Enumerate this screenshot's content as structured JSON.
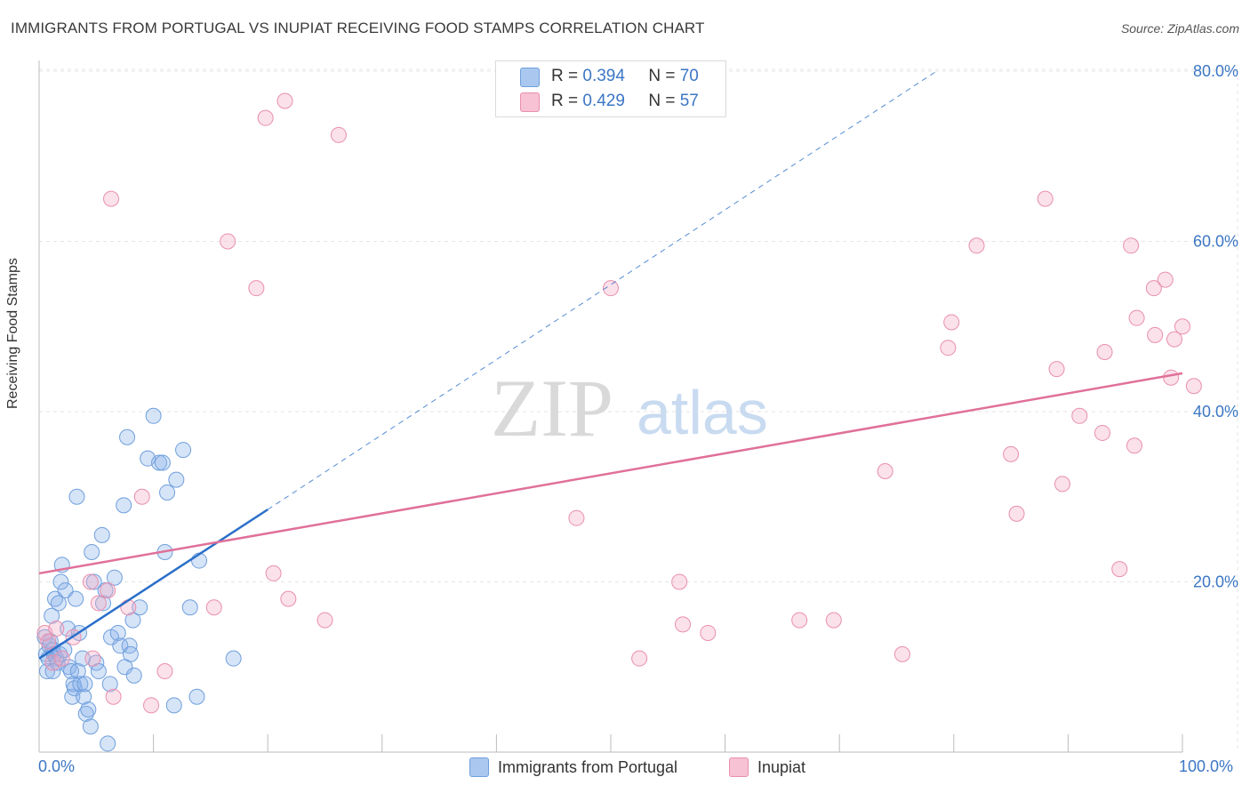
{
  "header": {
    "title": "IMMIGRANTS FROM PORTUGAL VS INUPIAT RECEIVING FOOD STAMPS CORRELATION CHART",
    "source": "Source: ZipAtlas.com"
  },
  "watermark": {
    "zip": "ZIP",
    "atlas": "atlas"
  },
  "legend": {
    "r_label": "R =",
    "n_label": "N =",
    "series": [
      {
        "name": "Immigrants from Portugal",
        "r": "0.394",
        "n": "70",
        "fill": "#aac8ef",
        "stroke": "#6f9fdc"
      },
      {
        "name": "Inupiat",
        "r": "0.429",
        "n": "57",
        "fill": "#f7c2d3",
        "stroke": "#e98fae"
      }
    ]
  },
  "colors": {
    "blue_point_fill": "rgba(137,178,235,0.35)",
    "blue_point_stroke": "#6f9fdc",
    "pink_point_fill": "rgba(243,168,194,0.35)",
    "pink_point_stroke": "#e98fae",
    "blue_line": "#2a6fc9",
    "pink_line": "#e07099",
    "grid": "#e6e6e6",
    "axis_text": "#3b76c4"
  },
  "chart_data": {
    "type": "scatter",
    "title": "IMMIGRANTS FROM PORTUGAL VS INUPIAT RECEIVING FOOD STAMPS CORRELATION CHART",
    "xlabel": "",
    "ylabel": "Receiving Food Stamps",
    "x_tick_labels": [
      "0.0%",
      "100.0%"
    ],
    "y_tick_labels": [
      "20.0%",
      "40.0%",
      "60.0%",
      "80.0%"
    ],
    "xlim": [
      0,
      100
    ],
    "ylim": [
      0,
      82
    ],
    "y_ticks": [
      20,
      40,
      60,
      80
    ],
    "series": [
      {
        "name": "Immigrants from Portugal",
        "r": 0.394,
        "n": 70,
        "trend": {
          "x0": 0,
          "y0": 11.0,
          "x1": 20,
          "y1": 28.5,
          "dashed_to_x": 78.5,
          "dashed_to_y": 80.0
        },
        "points": [
          [
            0.5,
            13.5
          ],
          [
            0.6,
            11.5
          ],
          [
            0.7,
            9.5
          ],
          [
            0.8,
            11.0
          ],
          [
            0.9,
            12.5
          ],
          [
            1.0,
            13.0
          ],
          [
            1.1,
            16.0
          ],
          [
            1.2,
            12.0
          ],
          [
            1.3,
            11.5
          ],
          [
            1.4,
            18.0
          ],
          [
            1.5,
            11.0
          ],
          [
            1.6,
            10.5
          ],
          [
            1.7,
            17.5
          ],
          [
            1.8,
            11.5
          ],
          [
            1.9,
            20.0
          ],
          [
            2.0,
            22.0
          ],
          [
            2.2,
            12.0
          ],
          [
            2.3,
            19.0
          ],
          [
            2.5,
            14.5
          ],
          [
            2.6,
            10.0
          ],
          [
            2.8,
            9.5
          ],
          [
            2.9,
            6.5
          ],
          [
            3.0,
            8.0
          ],
          [
            3.1,
            7.5
          ],
          [
            3.2,
            18.0
          ],
          [
            3.3,
            30.0
          ],
          [
            3.4,
            9.5
          ],
          [
            3.5,
            14.0
          ],
          [
            3.6,
            8.0
          ],
          [
            3.8,
            11.0
          ],
          [
            3.9,
            6.5
          ],
          [
            4.0,
            8.0
          ],
          [
            4.1,
            4.5
          ],
          [
            4.3,
            5.0
          ],
          [
            4.5,
            3.0
          ],
          [
            4.6,
            23.5
          ],
          [
            4.8,
            20.0
          ],
          [
            5.0,
            10.5
          ],
          [
            5.2,
            9.5
          ],
          [
            5.5,
            25.5
          ],
          [
            5.6,
            17.5
          ],
          [
            5.8,
            19.0
          ],
          [
            6.0,
            1.0
          ],
          [
            6.2,
            8.0
          ],
          [
            6.3,
            13.5
          ],
          [
            6.6,
            20.5
          ],
          [
            6.9,
            14.0
          ],
          [
            7.1,
            12.5
          ],
          [
            7.4,
            29.0
          ],
          [
            7.5,
            10.0
          ],
          [
            7.7,
            37.0
          ],
          [
            7.9,
            12.5
          ],
          [
            8.0,
            11.5
          ],
          [
            8.2,
            15.5
          ],
          [
            8.3,
            9.0
          ],
          [
            8.8,
            17.0
          ],
          [
            9.5,
            34.5
          ],
          [
            10.0,
            39.5
          ],
          [
            10.5,
            34.0
          ],
          [
            10.8,
            34.0
          ],
          [
            11.0,
            23.5
          ],
          [
            11.2,
            30.5
          ],
          [
            11.8,
            5.5
          ],
          [
            12.0,
            32.0
          ],
          [
            12.6,
            35.5
          ],
          [
            13.2,
            17.0
          ],
          [
            13.8,
            6.5
          ],
          [
            14.0,
            22.5
          ],
          [
            17.0,
            11.0
          ],
          [
            1.2,
            9.5
          ]
        ]
      },
      {
        "name": "Inupiat",
        "r": 0.429,
        "n": 57,
        "trend": {
          "x0": 0,
          "y0": 21.0,
          "x1": 100,
          "y1": 44.5
        },
        "points": [
          [
            0.5,
            14.0
          ],
          [
            0.8,
            13.0
          ],
          [
            1.2,
            10.5
          ],
          [
            1.5,
            14.5
          ],
          [
            2.0,
            11.0
          ],
          [
            3.0,
            13.5
          ],
          [
            4.5,
            20.0
          ],
          [
            4.7,
            11.0
          ],
          [
            5.2,
            17.5
          ],
          [
            6.0,
            19.0
          ],
          [
            6.5,
            6.5
          ],
          [
            7.8,
            17.0
          ],
          [
            9.0,
            30.0
          ],
          [
            9.8,
            5.5
          ],
          [
            11.0,
            9.5
          ],
          [
            6.3,
            65.0
          ],
          [
            15.3,
            17.0
          ],
          [
            16.5,
            60.0
          ],
          [
            19.0,
            54.5
          ],
          [
            19.8,
            74.5
          ],
          [
            20.5,
            21.0
          ],
          [
            21.5,
            76.5
          ],
          [
            21.8,
            18.0
          ],
          [
            25.0,
            15.5
          ],
          [
            26.2,
            72.5
          ],
          [
            47.0,
            27.5
          ],
          [
            50.0,
            54.5
          ],
          [
            52.5,
            11.0
          ],
          [
            56.0,
            20.0
          ],
          [
            56.3,
            15.0
          ],
          [
            58.5,
            14.0
          ],
          [
            66.5,
            15.5
          ],
          [
            69.5,
            15.5
          ],
          [
            74.0,
            33.0
          ],
          [
            75.5,
            11.5
          ],
          [
            79.5,
            47.5
          ],
          [
            79.8,
            50.5
          ],
          [
            82.0,
            59.5
          ],
          [
            85.0,
            35.0
          ],
          [
            85.5,
            28.0
          ],
          [
            88.0,
            65.0
          ],
          [
            89.0,
            45.0
          ],
          [
            89.5,
            31.5
          ],
          [
            91.0,
            39.5
          ],
          [
            93.0,
            37.5
          ],
          [
            93.2,
            47.0
          ],
          [
            94.5,
            21.5
          ],
          [
            95.5,
            59.5
          ],
          [
            95.8,
            36.0
          ],
          [
            96.0,
            51.0
          ],
          [
            97.5,
            54.5
          ],
          [
            97.6,
            49.0
          ],
          [
            98.5,
            55.5
          ],
          [
            99.0,
            44.0
          ],
          [
            100.0,
            50.0
          ],
          [
            101.0,
            43.0
          ],
          [
            99.3,
            48.5
          ]
        ]
      }
    ]
  }
}
